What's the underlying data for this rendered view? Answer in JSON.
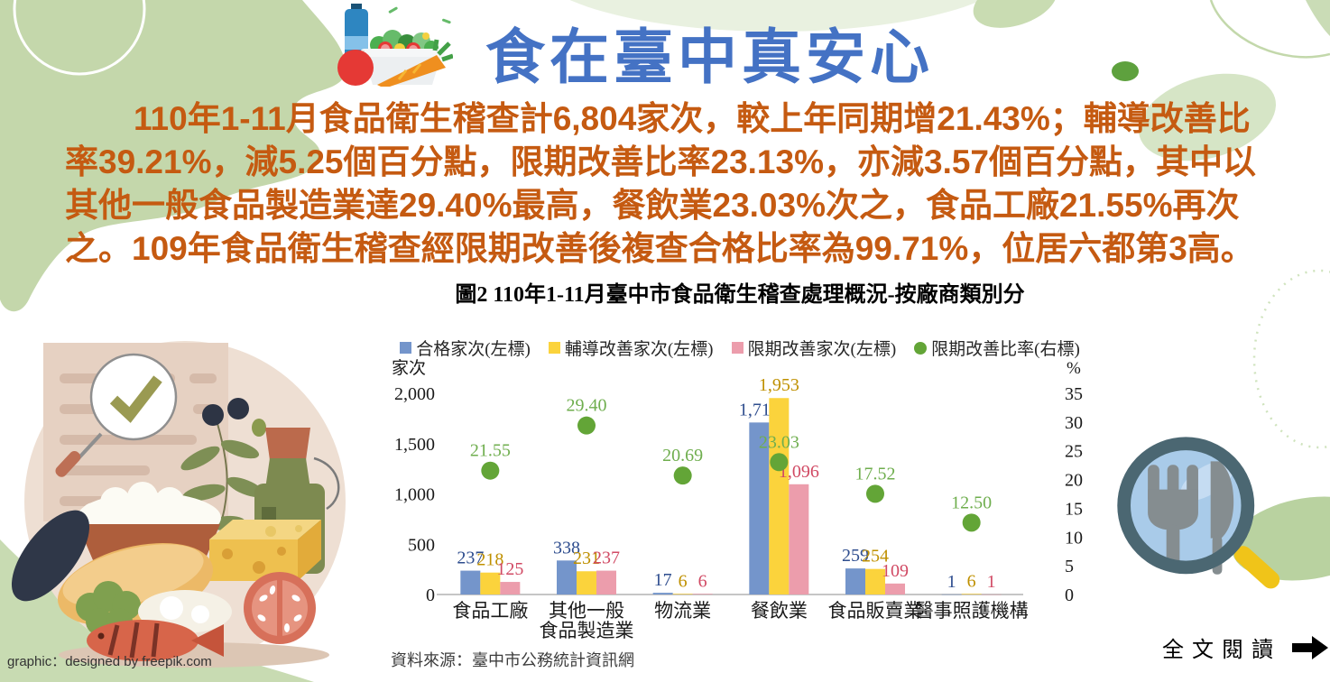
{
  "header": {
    "title": "食在臺中真安心"
  },
  "summary": {
    "lines": [
      "110年1-11月食品衛生稽查計6,804家次，較上年同期增21.43%；輔導改善比",
      "率39.21%，減5.25個百分點，限期改善比率23.13%，亦減3.57個百分點，其中以",
      "其他一般食品製造業達29.40%最高，餐飲業23.03%次之，食品工廠21.55%再次",
      "之。109年食品衛生稽查經限期改善後複查合格比率為99.71%，位居六都第3高。"
    ]
  },
  "chart": {
    "title": "圖2 110年1-11月臺中市食品衛生稽查處理概況-按廠商類別分",
    "source": "資料來源：臺中市公務統計資訊網"
  },
  "chart_data": {
    "type": "bar",
    "subtype": "grouped bars with right-axis scatter overlay",
    "title": "圖2 110年1-11月臺中市食品衛生稽查處理概況-按廠商類別分",
    "categories": [
      "食品工廠",
      "其他一般食品製造業",
      "物流業",
      "餐飲業",
      "食品販賣業",
      "醫事照護機構"
    ],
    "category_lines": [
      [
        "食品工廠"
      ],
      [
        "其他一般",
        "食品製造業"
      ],
      [
        "物流業"
      ],
      [
        "餐飲業"
      ],
      [
        "食品販賣業"
      ],
      [
        "醫事照護機構"
      ]
    ],
    "series": [
      {
        "name": "合格家次(左標)",
        "type": "bar",
        "axis": "left",
        "color": "#7495CB",
        "label_color": "#2E4D8E",
        "values": [
          237,
          338,
          17,
          1710,
          259,
          1
        ]
      },
      {
        "name": "輔導改善家次(左標)",
        "type": "bar",
        "axis": "left",
        "color": "#FBD33C",
        "label_color": "#BF9000",
        "values": [
          218,
          231,
          6,
          1953,
          254,
          6
        ]
      },
      {
        "name": "限期改善家次(左標)",
        "type": "bar",
        "axis": "left",
        "color": "#EC9DAC",
        "label_color": "#D14A64",
        "values": [
          125,
          237,
          6,
          1096,
          109,
          1
        ]
      },
      {
        "name": "限期改善比率(右標)",
        "type": "scatter",
        "axis": "right",
        "color": "#63A537",
        "label_color": "#6FAE4E",
        "values": [
          21.55,
          29.4,
          20.69,
          23.03,
          17.52,
          12.5
        ]
      }
    ],
    "left_axis": {
      "label": "家次",
      "min": 0,
      "max": 2000,
      "step": 500
    },
    "right_axis": {
      "label": "%",
      "min": 0,
      "max": 35,
      "step": 5
    },
    "legend_position": "top",
    "grid": "baseline-only"
  },
  "footer": {
    "credit": "graphic：designed by freepik.com",
    "read_more": "全文閱讀"
  },
  "icons": {
    "header": "salad-bowl-icon",
    "left": "food-inspection-illustration",
    "right": "magnifier-cutlery-icon",
    "read_more": "right-arrow-icon"
  },
  "colors": {
    "title-blue": "#4472C4",
    "body-orange": "#C55A11",
    "blob-green": "#c6d9ae",
    "blob-green-dark": "#5ea13e",
    "blob-green-pale": "#d9e6c9"
  }
}
